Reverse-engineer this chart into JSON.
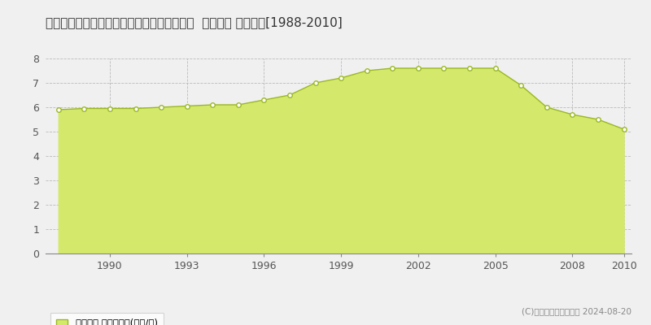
{
  "title": "北海道旭川市忠和４条１丁目６６番７４０外  地価公示 地価推移[1988-2010]",
  "years": [
    1988,
    1989,
    1990,
    1991,
    1992,
    1993,
    1994,
    1995,
    1996,
    1997,
    1998,
    1999,
    2000,
    2001,
    2002,
    2003,
    2004,
    2005,
    2006,
    2007,
    2008,
    2009,
    2010
  ],
  "values": [
    5.9,
    5.95,
    5.95,
    5.95,
    6.0,
    6.05,
    6.1,
    6.1,
    6.3,
    6.5,
    7.0,
    7.2,
    7.5,
    7.6,
    7.6,
    7.6,
    7.6,
    7.6,
    6.9,
    6.0,
    5.7,
    5.5,
    5.1
  ],
  "fill_color": "#d4e96b",
  "line_color": "#9ab825",
  "marker_color": "#ffffff",
  "marker_edge_color": "#9ab825",
  "background_color": "#f0f0f0",
  "plot_bg_color": "#f0f0f0",
  "grid_color": "#bbbbbb",
  "ylim": [
    0,
    8
  ],
  "yticks": [
    0,
    1,
    2,
    3,
    4,
    5,
    6,
    7,
    8
  ],
  "title_color": "#333333",
  "tick_color": "#555555",
  "title_fontsize": 11,
  "tick_fontsize": 9,
  "legend_label": "地価公示 平均坪単価(万円/坪)",
  "legend_fill_color": "#d4e96b",
  "legend_edge_color": "#9ab825",
  "copyright_text": "(C)土地価格ドットコム 2024-08-20",
  "xtick_years": [
    1990,
    1993,
    1996,
    1999,
    2002,
    2005,
    2008,
    2010
  ]
}
